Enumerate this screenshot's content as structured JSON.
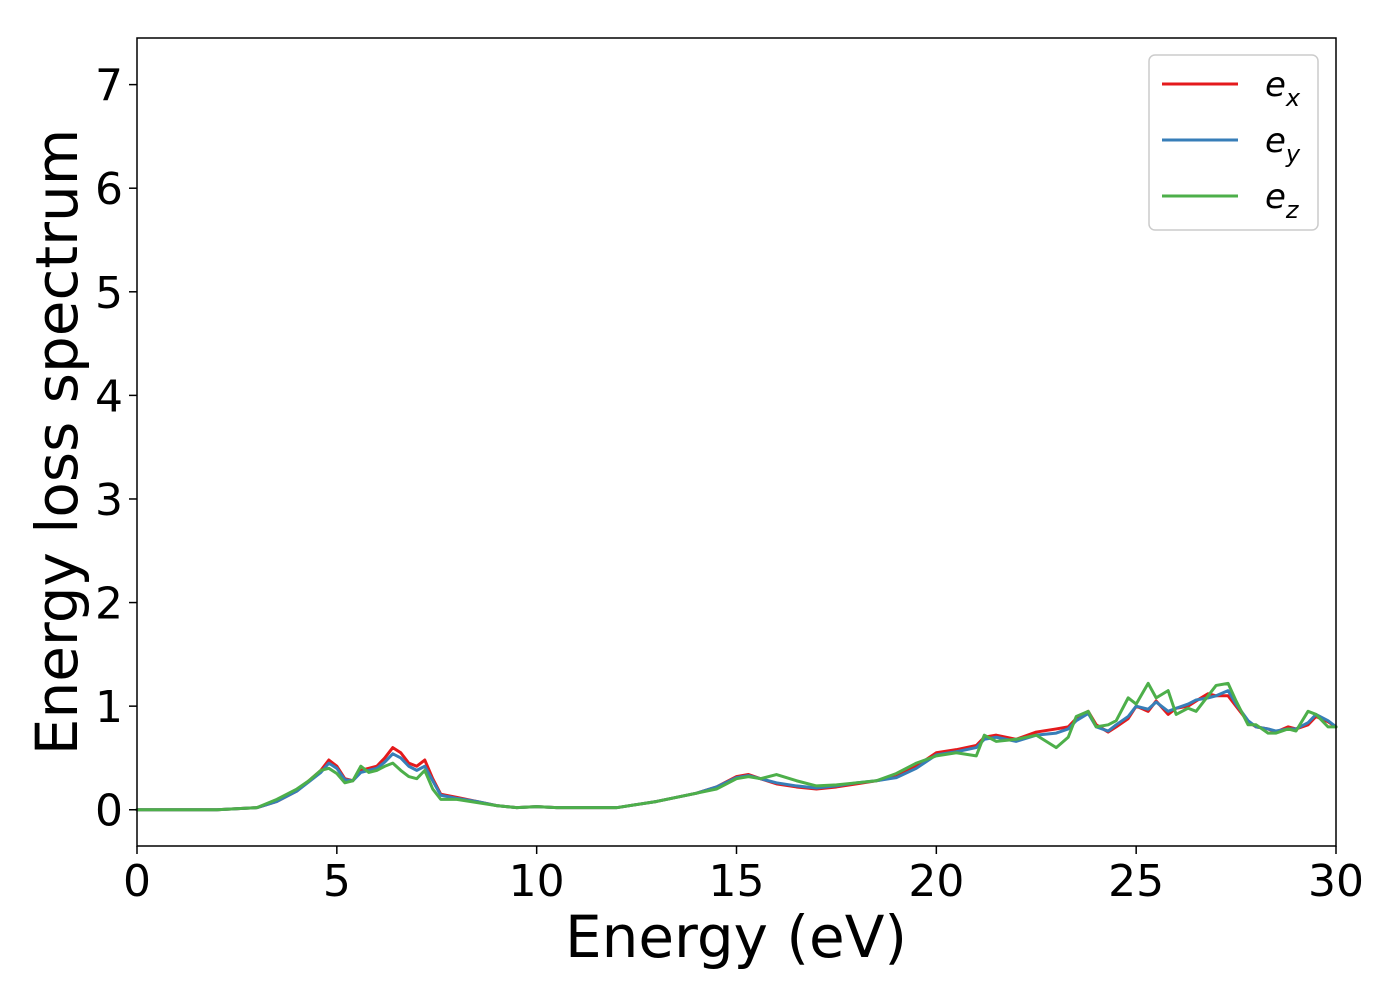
{
  "chart_data": {
    "type": "line",
    "title": "",
    "xlabel": "Energy (eV)",
    "ylabel": "Energy loss spectrum",
    "xlim": [
      0,
      30
    ],
    "ylim": [
      -0.35,
      7.45
    ],
    "xticks": [
      "0",
      "5",
      "10",
      "15",
      "20",
      "25",
      "30"
    ],
    "yticks": [
      "0",
      "1",
      "2",
      "3",
      "4",
      "5",
      "6",
      "7"
    ],
    "grid": false,
    "legend_position": "top-right",
    "series": [
      {
        "name_base": "e",
        "name_sub": "x",
        "color": "#e41a1c",
        "x": [
          0,
          1,
          2,
          3,
          3.5,
          4,
          4.3,
          4.6,
          4.8,
          5.0,
          5.2,
          5.4,
          5.6,
          5.8,
          6.0,
          6.2,
          6.4,
          6.6,
          6.8,
          7.0,
          7.2,
          7.4,
          7.6,
          8,
          8.5,
          9,
          9.5,
          10,
          10.5,
          11,
          11.5,
          12,
          12.5,
          13,
          13.5,
          14,
          14.5,
          15,
          15.3,
          15.6,
          16,
          16.5,
          17,
          17.5,
          18,
          18.5,
          19,
          19.5,
          20,
          20.5,
          21,
          21.2,
          21.5,
          22,
          22.5,
          23,
          23.3,
          23.5,
          23.8,
          24,
          24.3,
          24.5,
          24.8,
          25,
          25.3,
          25.5,
          25.8,
          26,
          26.3,
          26.5,
          26.8,
          27,
          27.3,
          27.5,
          27.8,
          28,
          28.3,
          28.5,
          28.8,
          29,
          29.3,
          29.5,
          29.8,
          30
        ],
        "y": [
          0,
          0,
          0,
          0.02,
          0.08,
          0.18,
          0.28,
          0.38,
          0.48,
          0.42,
          0.3,
          0.28,
          0.38,
          0.4,
          0.42,
          0.5,
          0.6,
          0.55,
          0.45,
          0.42,
          0.48,
          0.3,
          0.15,
          0.12,
          0.08,
          0.04,
          0.02,
          0.03,
          0.02,
          0.02,
          0.02,
          0.02,
          0.05,
          0.08,
          0.12,
          0.16,
          0.22,
          0.32,
          0.34,
          0.3,
          0.25,
          0.22,
          0.2,
          0.22,
          0.25,
          0.28,
          0.32,
          0.42,
          0.55,
          0.58,
          0.62,
          0.7,
          0.72,
          0.68,
          0.75,
          0.78,
          0.8,
          0.88,
          0.95,
          0.82,
          0.75,
          0.8,
          0.88,
          1.0,
          0.95,
          1.05,
          0.92,
          0.98,
          1.0,
          1.05,
          1.12,
          1.1,
          1.1,
          1.0,
          0.85,
          0.8,
          0.78,
          0.75,
          0.8,
          0.78,
          0.82,
          0.9,
          0.85,
          0.8
        ]
      },
      {
        "name_base": "e",
        "name_sub": "y",
        "color": "#377eb8",
        "x": [
          0,
          1,
          2,
          3,
          3.5,
          4,
          4.3,
          4.6,
          4.8,
          5.0,
          5.2,
          5.4,
          5.6,
          5.8,
          6.0,
          6.2,
          6.4,
          6.6,
          6.8,
          7.0,
          7.2,
          7.4,
          7.6,
          8,
          8.5,
          9,
          9.5,
          10,
          10.5,
          11,
          11.5,
          12,
          12.5,
          13,
          13.5,
          14,
          14.5,
          15,
          15.3,
          15.6,
          16,
          16.5,
          17,
          17.5,
          18,
          18.5,
          19,
          19.5,
          20,
          20.5,
          21,
          21.2,
          21.5,
          22,
          22.5,
          23,
          23.3,
          23.5,
          23.8,
          24,
          24.3,
          24.5,
          24.8,
          25,
          25.3,
          25.5,
          25.8,
          26,
          26.3,
          26.5,
          26.8,
          27,
          27.3,
          27.5,
          27.8,
          28,
          28.3,
          28.5,
          28.8,
          29,
          29.3,
          29.5,
          29.8,
          30
        ],
        "y": [
          0,
          0,
          0,
          0.02,
          0.08,
          0.18,
          0.27,
          0.36,
          0.45,
          0.4,
          0.29,
          0.28,
          0.36,
          0.38,
          0.4,
          0.46,
          0.54,
          0.5,
          0.42,
          0.38,
          0.42,
          0.28,
          0.14,
          0.11,
          0.08,
          0.04,
          0.02,
          0.03,
          0.02,
          0.02,
          0.02,
          0.02,
          0.05,
          0.08,
          0.12,
          0.16,
          0.22,
          0.31,
          0.33,
          0.3,
          0.26,
          0.23,
          0.21,
          0.23,
          0.26,
          0.28,
          0.31,
          0.4,
          0.53,
          0.56,
          0.6,
          0.68,
          0.7,
          0.66,
          0.72,
          0.74,
          0.78,
          0.86,
          0.93,
          0.8,
          0.76,
          0.82,
          0.9,
          1.0,
          0.97,
          1.04,
          0.95,
          0.98,
          1.02,
          1.06,
          1.08,
          1.1,
          1.15,
          1.02,
          0.86,
          0.8,
          0.78,
          0.76,
          0.78,
          0.78,
          0.84,
          0.92,
          0.86,
          0.8
        ]
      },
      {
        "name_base": "e",
        "name_sub": "z",
        "color": "#4daf4a",
        "x": [
          0,
          1,
          2,
          3,
          3.5,
          4,
          4.3,
          4.6,
          4.8,
          5.0,
          5.2,
          5.4,
          5.6,
          5.8,
          6.0,
          6.2,
          6.4,
          6.6,
          6.8,
          7.0,
          7.2,
          7.4,
          7.6,
          8,
          8.5,
          9,
          9.5,
          10,
          10.5,
          11,
          11.5,
          12,
          12.5,
          13,
          13.5,
          14,
          14.5,
          15,
          15.3,
          15.6,
          16,
          16.5,
          17,
          17.5,
          18,
          18.5,
          19,
          19.5,
          20,
          20.5,
          21,
          21.2,
          21.5,
          22,
          22.5,
          23,
          23.3,
          23.5,
          23.8,
          24,
          24.3,
          24.5,
          24.8,
          25,
          25.3,
          25.5,
          25.8,
          26,
          26.3,
          26.5,
          26.8,
          27,
          27.3,
          27.5,
          27.8,
          28,
          28.3,
          28.5,
          28.8,
          29,
          29.3,
          29.5,
          29.8,
          30
        ],
        "y": [
          0,
          0,
          0,
          0.02,
          0.1,
          0.2,
          0.28,
          0.38,
          0.4,
          0.35,
          0.26,
          0.28,
          0.42,
          0.36,
          0.38,
          0.42,
          0.45,
          0.38,
          0.32,
          0.3,
          0.38,
          0.2,
          0.1,
          0.1,
          0.07,
          0.04,
          0.02,
          0.03,
          0.02,
          0.02,
          0.02,
          0.02,
          0.05,
          0.08,
          0.12,
          0.16,
          0.2,
          0.3,
          0.32,
          0.3,
          0.34,
          0.28,
          0.23,
          0.24,
          0.26,
          0.28,
          0.35,
          0.45,
          0.52,
          0.55,
          0.52,
          0.72,
          0.66,
          0.68,
          0.72,
          0.6,
          0.7,
          0.9,
          0.95,
          0.8,
          0.82,
          0.86,
          1.08,
          1.02,
          1.22,
          1.08,
          1.15,
          0.92,
          0.98,
          0.95,
          1.1,
          1.2,
          1.22,
          1.05,
          0.82,
          0.82,
          0.74,
          0.74,
          0.78,
          0.76,
          0.95,
          0.92,
          0.8,
          0.8
        ]
      }
    ]
  }
}
